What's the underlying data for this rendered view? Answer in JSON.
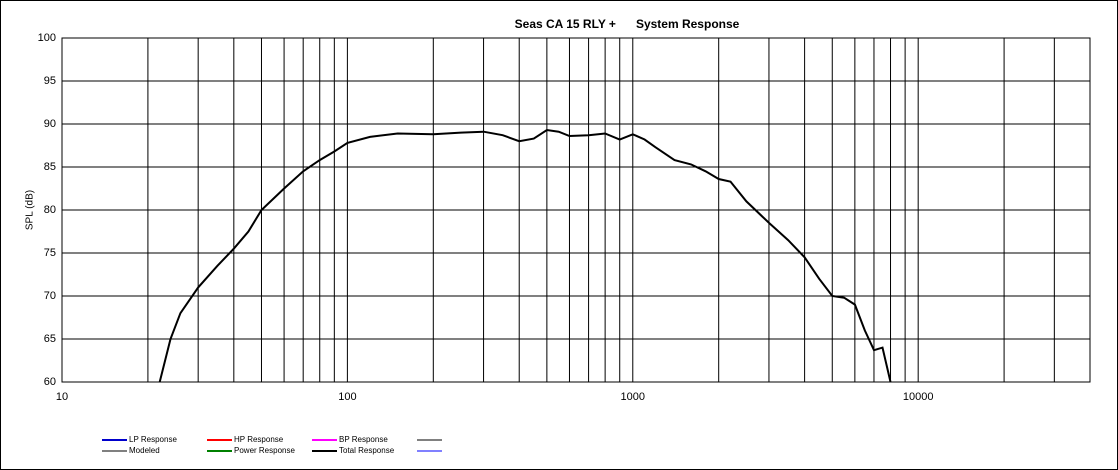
{
  "chart_data": {
    "type": "line",
    "title": "Seas CA 15 RLY +      System Response",
    "y_label": "SPL (dB)",
    "x_scale": "log",
    "xlim": [
      10,
      40000
    ],
    "xticks": [
      10,
      100,
      1000,
      10000
    ],
    "x_minor_grid": [
      20,
      30,
      40,
      50,
      60,
      70,
      80,
      90,
      200,
      300,
      400,
      500,
      600,
      700,
      800,
      900,
      2000,
      3000,
      4000,
      5000,
      6000,
      7000,
      8000,
      9000,
      20000,
      30000
    ],
    "ylim": [
      60,
      100
    ],
    "yticks": [
      60,
      65,
      70,
      75,
      80,
      85,
      90,
      95,
      100
    ],
    "grid": true,
    "x": [
      22,
      24,
      26,
      30,
      35,
      40,
      45,
      50,
      60,
      70,
      80,
      90,
      100,
      120,
      150,
      200,
      250,
      300,
      350,
      400,
      450,
      500,
      550,
      600,
      700,
      800,
      900,
      1000,
      1100,
      1200,
      1400,
      1600,
      1800,
      2000,
      2200,
      2500,
      3000,
      3500,
      4000,
      4500,
      5000,
      5500,
      6000,
      6500,
      7000,
      7500,
      8000
    ],
    "series": [
      {
        "name": "Total Response",
        "color": "#000000",
        "values": [
          60,
          65,
          68,
          71,
          73.5,
          75.5,
          77.5,
          80,
          82.5,
          84.5,
          85.8,
          86.8,
          87.8,
          88.5,
          88.9,
          88.8,
          89,
          89.1,
          88.7,
          88,
          88.3,
          89.3,
          89.1,
          88.6,
          88.7,
          88.9,
          88.2,
          88.8,
          88.2,
          87.3,
          85.8,
          85.3,
          84.5,
          83.6,
          83.3,
          81,
          78.5,
          76.5,
          74.5,
          72,
          70,
          69.8,
          69,
          66,
          63.7,
          64,
          60
        ]
      }
    ],
    "legend": [
      {
        "name": "LP Response",
        "color": "#0000cc"
      },
      {
        "name": "HP Response",
        "color": "#ff0000"
      },
      {
        "name": "BP Response",
        "color": "#ff00ff"
      },
      {
        "name": "Modeled",
        "color": "#808080"
      },
      {
        "name": "Power Response",
        "color": "#008000"
      },
      {
        "name": "Total Response",
        "color": "#000000"
      }
    ]
  }
}
